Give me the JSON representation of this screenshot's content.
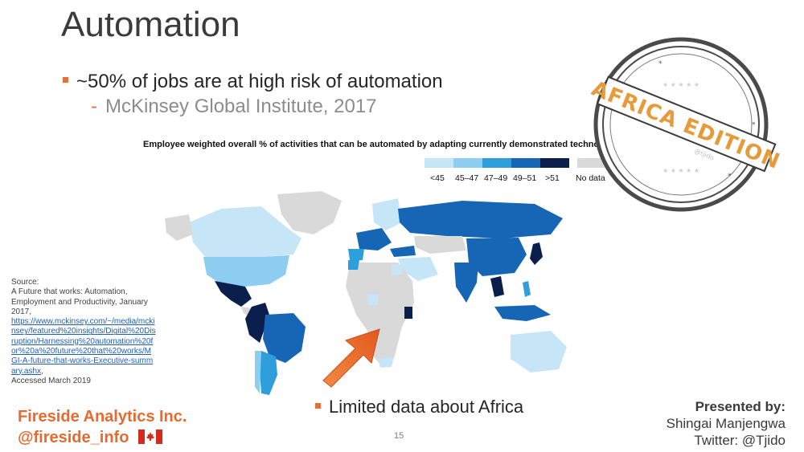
{
  "slide": {
    "title": "Automation",
    "bullet1": "~50% of jobs are at high risk of automation",
    "bullet1_sub": "McKinsey Global Institute, 2017",
    "bullet2": "Limited data about Africa",
    "page_number": "15"
  },
  "map": {
    "title": "Employee weighted overall % of activities that can be automated  by adapting currently demonstrated technologies",
    "legend": [
      {
        "label": "<45",
        "color": "#c6e6f8"
      },
      {
        "label": "45–47",
        "color": "#8ccdf0"
      },
      {
        "label": "47–49",
        "color": "#2e9fdb"
      },
      {
        "label": "49–51",
        "color": "#1766b5"
      },
      {
        "label": ">51",
        "color": "#0b1f4d"
      },
      {
        "label": "No data",
        "color": "#d9d9d9"
      }
    ]
  },
  "source": {
    "heading": "Source:",
    "text": "A Future that works: Automation, Employment and Productivity, January 2017,",
    "link": "https://www.mckinsey.com/~/media/mckinsey/featured%20insights/Digital%20Disruption/Harnessing%20automation%20for%20a%20future%20that%20works/MGI-A-future-that-works-Executive-summary.ashx",
    "accessed": "Accessed March 2019"
  },
  "branding": {
    "company": "Fireside Analytics Inc.",
    "handle": "@fireside_info",
    "stamp_text": "AFRICA EDITION",
    "stamp_small": "@tjido",
    "accent_color": "#e86a2e"
  },
  "presenter": {
    "label": "Presented by:",
    "name": "Shingai Manjengwa",
    "twitter": "Twitter: @Tjido"
  }
}
